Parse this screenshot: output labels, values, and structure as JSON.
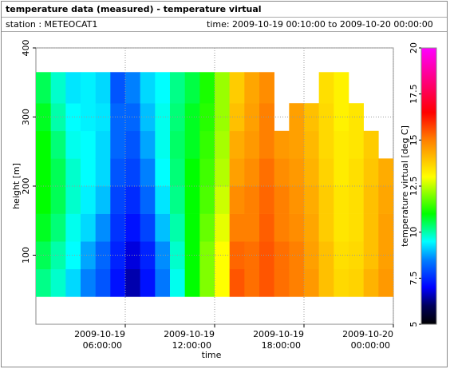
{
  "chart_data": {
    "type": "heatmap",
    "title": "temperature data (measured) - temperature virtual",
    "station": "station : METEOCAT1",
    "time_range": "time: 2009-10-19 00:10:00 to 2009-10-20 00:00:00",
    "xlabel": "time",
    "ylabel": "height [m]",
    "colorbar_label": "temperature virtual [deg C]",
    "xlim": [
      0,
      24
    ],
    "xticks": [
      {
        "value": 6,
        "label": "2009-10-19 06:00:00"
      },
      {
        "value": 12,
        "label": "2009-10-19 12:00:00"
      },
      {
        "value": 18,
        "label": "2009-10-19 18:00:00"
      },
      {
        "value": 24,
        "label": "2009-10-20 00:00:00"
      }
    ],
    "ylim": [
      0,
      400
    ],
    "yticks": [
      100,
      200,
      300,
      400
    ],
    "grid": true,
    "x_bins": [
      0,
      1,
      2,
      3,
      4,
      5,
      6,
      7,
      8,
      9,
      10,
      11,
      12,
      13,
      14,
      15,
      16,
      17,
      18,
      19,
      20,
      21,
      22,
      23,
      24
    ],
    "y_bins": [
      40,
      80,
      120,
      160,
      200,
      240,
      280,
      320,
      365
    ],
    "values": [
      [
        10.2,
        10.5,
        10.8,
        11,
        11,
        11,
        10.8,
        10.5
      ],
      [
        9.8,
        10,
        10.3,
        10.5,
        10.5,
        10.3,
        10,
        9.8
      ],
      [
        9.2,
        9.5,
        9.6,
        9.8,
        9.8,
        9.6,
        9.5,
        9.3
      ],
      [
        8.5,
        8.8,
        9.2,
        9.4,
        9.5,
        9.5,
        9.4,
        9.4
      ],
      [
        8,
        8.2,
        8.6,
        9,
        9.2,
        9.2,
        9.3,
        9.2
      ],
      [
        7.2,
        7.4,
        7.6,
        7.8,
        8,
        8.2,
        8.2,
        8
      ],
      [
        6.5,
        6.8,
        7.2,
        7.5,
        7.8,
        8,
        8.2,
        8.5
      ],
      [
        7.2,
        7.4,
        7.8,
        8.2,
        8.5,
        8.8,
        9,
        9.2
      ],
      [
        8.4,
        8.6,
        9,
        9.3,
        9.5,
        9.6,
        9.6,
        9.5
      ],
      [
        9.6,
        9.8,
        10,
        10.2,
        10.3,
        10.4,
        10.3,
        10.2
      ],
      [
        11,
        11,
        11,
        11,
        11,
        10.8,
        10.8,
        10.6
      ],
      [
        12,
        12,
        11.8,
        11.6,
        11.5,
        11.4,
        11.3,
        11.2
      ],
      [
        13,
        13,
        12.8,
        12.6,
        12.4,
        12.3,
        12.2,
        12.2
      ],
      [
        15.5,
        15.3,
        15,
        14.8,
        14.5,
        14.3,
        14,
        13.8
      ],
      [
        15.2,
        15.2,
        15,
        15,
        14.8,
        14.6,
        14.5,
        14.4
      ],
      [
        15.5,
        15.5,
        15.4,
        15.3,
        15.2,
        15,
        15,
        14.8
      ],
      [
        15.2,
        15.2,
        15,
        15,
        14.8,
        14.6,
        null,
        null
      ],
      [
        15,
        15,
        14.8,
        14.7,
        14.6,
        14.5,
        14.5,
        null
      ],
      [
        14.6,
        14.5,
        14.4,
        14.3,
        14.2,
        14.1,
        14,
        null
      ],
      [
        14,
        14,
        13.8,
        13.8,
        13.7,
        13.6,
        13.6,
        13.5
      ],
      [
        13.6,
        13.5,
        13.4,
        13.4,
        13.3,
        13.3,
        13.2,
        13.2
      ],
      [
        13.7,
        13.6,
        13.5,
        13.5,
        13.5,
        13.4,
        13.4,
        null
      ],
      [
        14.2,
        14,
        14,
        14,
        13.9,
        13.8,
        null,
        null
      ],
      [
        14.6,
        14.5,
        14.5,
        14.4,
        14.3,
        null,
        null,
        null
      ]
    ],
    "clim": [
      5,
      20
    ],
    "cticks": [
      5,
      7.5,
      10,
      12.5,
      15,
      17.5,
      20
    ],
    "colormap": [
      [
        5,
        "#000000"
      ],
      [
        6,
        "#00005a"
      ],
      [
        7,
        "#0000ff"
      ],
      [
        8.5,
        "#0080ff"
      ],
      [
        9.5,
        "#00ffff"
      ],
      [
        11,
        "#00ff00"
      ],
      [
        13,
        "#ffff00"
      ],
      [
        15,
        "#ff8000"
      ],
      [
        16.5,
        "#ff0000"
      ],
      [
        20,
        "#ff00ff"
      ]
    ]
  }
}
